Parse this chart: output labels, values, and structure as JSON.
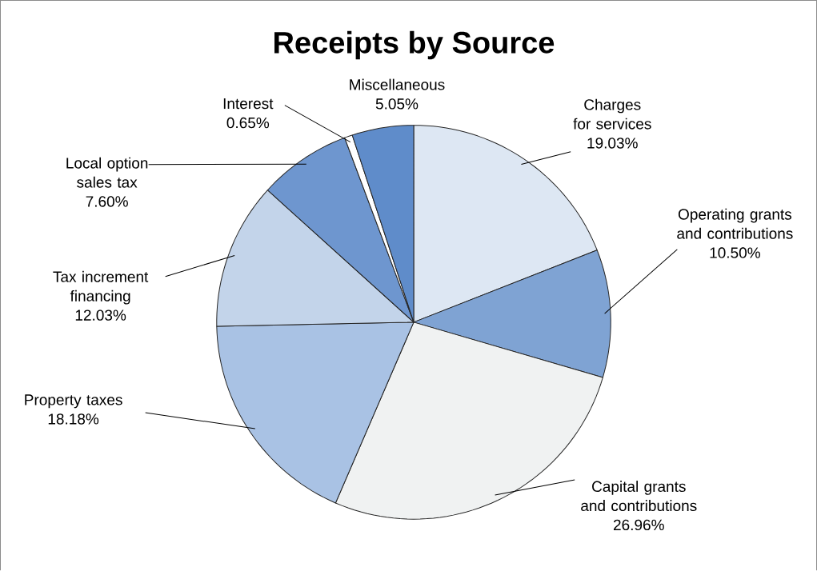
{
  "chart_data": {
    "type": "pie",
    "title": "Receipts by Source",
    "categories": [
      "Charges for services",
      "Operating grants and contributions",
      "Capital grants and contributions",
      "Property taxes",
      "Tax increment financing",
      "Local option sales tax",
      "Interest",
      "Miscellaneous"
    ],
    "values": [
      19.03,
      10.5,
      26.96,
      18.18,
      12.03,
      7.6,
      0.65,
      5.05
    ],
    "value_labels": [
      "19.03%",
      "10.50%",
      "26.96%",
      "18.18%",
      "12.03%",
      "7.60%",
      "0.65%",
      "5.05%"
    ],
    "colors": [
      "#dde7f3",
      "#7fa3d3",
      "#f0f2f2",
      "#a9c2e4",
      "#c3d4ea",
      "#6e96cf",
      "#ffffff",
      "#5f8cca"
    ]
  }
}
